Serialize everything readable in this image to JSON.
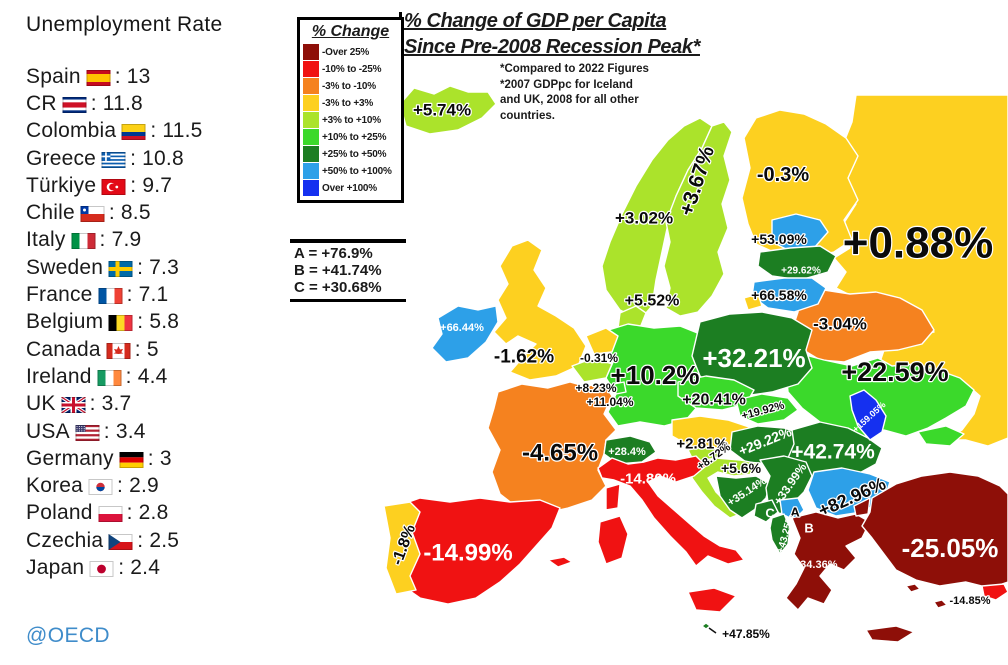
{
  "left_panel": {
    "title": "Unemployment Rate",
    "items": [
      {
        "country": "Spain",
        "flag": "spain",
        "value": "13"
      },
      {
        "country": "CR",
        "flag": "costa-rica",
        "value": "11.8"
      },
      {
        "country": "Colombia",
        "flag": "colombia",
        "value": "11.5"
      },
      {
        "country": "Greece",
        "flag": "greece",
        "value": "10.8"
      },
      {
        "country": "Türkiye",
        "flag": "turkiye",
        "value": "9.7"
      },
      {
        "country": "Chile",
        "flag": "chile",
        "value": "8.5"
      },
      {
        "country": "Italy",
        "flag": "italy",
        "value": "7.9"
      },
      {
        "country": "Sweden",
        "flag": "sweden",
        "value": "7.3"
      },
      {
        "country": "France",
        "flag": "france",
        "value": "7.1"
      },
      {
        "country": "Belgium",
        "flag": "belgium",
        "value": "5.8"
      },
      {
        "country": "Canada",
        "flag": "canada",
        "value": "5"
      },
      {
        "country": "Ireland",
        "flag": "ireland",
        "value": "4.4"
      },
      {
        "country": "UK",
        "flag": "uk",
        "value": "3.7"
      },
      {
        "country": "USA",
        "flag": "usa",
        "value": "3.4"
      },
      {
        "country": "Germany",
        "flag": "germany",
        "value": "3"
      },
      {
        "country": "Korea",
        "flag": "south-korea",
        "value": "2.9"
      },
      {
        "country": "Poland",
        "flag": "poland",
        "value": "2.8"
      },
      {
        "country": "Czechia",
        "flag": "czechia",
        "value": "2.5"
      },
      {
        "country": "Japan",
        "flag": "japan",
        "value": "2.4"
      }
    ],
    "footer": "@OECD"
  },
  "legend": {
    "title": "% Change",
    "items": [
      {
        "label": "-Over 25%",
        "color": "#8e0f08"
      },
      {
        "label": "-10% to -25%",
        "color": "#f01212"
      },
      {
        "label": "-3% to -10%",
        "color": "#f5821f"
      },
      {
        "label": "-3% to +3%",
        "color": "#fdd020"
      },
      {
        "label": "+3% to +10%",
        "color": "#abe32b"
      },
      {
        "label": "+10% to +25%",
        "color": "#3bd92b"
      },
      {
        "label": "+25% to +50%",
        "color": "#1c7e22"
      },
      {
        "label": "+50% to +100%",
        "color": "#2da0e8"
      },
      {
        "label": "Over +100%",
        "color": "#1530f0"
      }
    ],
    "abc": [
      {
        "key": "A",
        "value": "+76.9%"
      },
      {
        "key": "B",
        "value": "+41.74%"
      },
      {
        "key": "C",
        "value": "+30.68%"
      }
    ]
  },
  "map": {
    "title_line1": "% Change of GDP per Capita",
    "title_line2": "Since Pre-2008 Recession Peak*",
    "note_lines": [
      "*Compared to 2022 Figures",
      "*2007 GDPpc for Iceland",
      "and UK, 2008 for all other",
      "countries."
    ],
    "countries": [
      {
        "id": "russia",
        "name": "Russia",
        "value": "+0.88%",
        "category": "-3% to +3%"
      },
      {
        "id": "finland",
        "name": "Finland",
        "value": "-0.3%",
        "category": "-3% to +3%"
      },
      {
        "id": "norway",
        "name": "Norway",
        "value": "+3.02%",
        "category": "+3% to +10%"
      },
      {
        "id": "sweden",
        "name": "Sweden",
        "value": "+3.67%",
        "category": "+3% to +10%"
      },
      {
        "id": "iceland",
        "name": "Iceland",
        "value": "+5.74%",
        "category": "+3% to +10%"
      },
      {
        "id": "belarus",
        "name": "Belarus",
        "value": "-3.04%",
        "category": "-3% to -10%"
      },
      {
        "id": "ukraine",
        "name": "Ukraine",
        "value": "+22.59%",
        "category": "+10% to +25%"
      },
      {
        "id": "estonia",
        "name": "Estonia",
        "value": "+53.09%",
        "category": "+50% to +100%"
      },
      {
        "id": "latvia",
        "name": "Latvia",
        "value": "+29.62%",
        "category": "+25% to +50%"
      },
      {
        "id": "lithuania",
        "name": "Lithuania",
        "value": "+66.58%",
        "category": "+50% to +100%"
      },
      {
        "id": "kaliningrad",
        "name": "Kaliningrad (Russia)",
        "value": "",
        "category": "-3% to +3%"
      },
      {
        "id": "denmark",
        "name": "Denmark",
        "value": "+5.52%",
        "category": "+3% to +10%"
      },
      {
        "id": "ireland",
        "name": "Ireland",
        "value": "+66.44%",
        "category": "+50% to +100%"
      },
      {
        "id": "uk",
        "name": "United Kingdom",
        "value": "-1.62%",
        "category": "-3% to +3%"
      },
      {
        "id": "france",
        "name": "France",
        "value": "-4.65%",
        "category": "-3% to -10%"
      },
      {
        "id": "germany",
        "name": "Germany",
        "value": "+10.2%",
        "category": "+10% to +25%"
      },
      {
        "id": "netherlands",
        "name": "Netherlands",
        "value": "-0.31%",
        "category": "-3% to +3%"
      },
      {
        "id": "belgium",
        "name": "Belgium",
        "value": "+8.23%",
        "category": "+3% to +10%"
      },
      {
        "id": "luxembourg",
        "name": "Luxembourg",
        "value": "+11.04%",
        "category": "+10% to +25%"
      },
      {
        "id": "poland",
        "name": "Poland",
        "value": "+32.21%",
        "category": "+25% to +50%"
      },
      {
        "id": "czechia",
        "name": "Czechia",
        "value": "+20.41%",
        "category": "+10% to +25%"
      },
      {
        "id": "slovakia",
        "name": "Slovakia",
        "value": "+19.92%",
        "category": "+10% to +25%"
      },
      {
        "id": "austria",
        "name": "Austria",
        "value": "+2.81%",
        "category": "-3% to +3%"
      },
      {
        "id": "switzerland",
        "name": "Switzerland",
        "value": "+28.4%",
        "category": "+25% to +50%"
      },
      {
        "id": "hungary",
        "name": "Hungary",
        "value": "+29.22%",
        "category": "+25% to +50%"
      },
      {
        "id": "romania",
        "name": "Romania",
        "value": "+42.74%",
        "category": "+25% to +50%"
      },
      {
        "id": "bulgaria",
        "name": "Bulgaria",
        "value": "+82.96%",
        "category": "+50% to +100%"
      },
      {
        "id": "moldova",
        "name": "Moldova",
        "value": "+159.05%",
        "category": "Over +100%"
      },
      {
        "id": "slovenia",
        "name": "Slovenia",
        "value": "+8.72%",
        "category": "+3% to +10%"
      },
      {
        "id": "croatia",
        "name": "Croatia",
        "value": "+5.6%",
        "category": "+3% to +10%"
      },
      {
        "id": "bosnia",
        "name": "Bosnia and Herzegovina",
        "value": "+35.14%",
        "category": "+25% to +50%"
      },
      {
        "id": "serbia",
        "name": "Serbia",
        "value": "+33.99%",
        "category": "+25% to +50%"
      },
      {
        "id": "montenegro",
        "name": "Montenegro",
        "value": "C",
        "category": "+25% to +50%"
      },
      {
        "id": "kosovo",
        "name": "Kosovo",
        "value": "A",
        "category": "+50% to +100%"
      },
      {
        "id": "north_macedonia",
        "name": "North Macedonia",
        "value": "B",
        "category": "+25% to +50%"
      },
      {
        "id": "albania",
        "name": "Albania",
        "value": "+43.25%",
        "category": "+25% to +50%"
      },
      {
        "id": "greece",
        "name": "Greece",
        "value": "-34.36%",
        "category": "-Over 25%"
      },
      {
        "id": "turkiye",
        "name": "Türkiye",
        "value": "-25.05%",
        "category": "-Over 25%"
      },
      {
        "id": "cyprus",
        "name": "Cyprus",
        "value": "-14.85%",
        "category": "-10% to -25%"
      },
      {
        "id": "italy",
        "name": "Italy",
        "value": "-14.80%",
        "category": "-10% to -25%"
      },
      {
        "id": "spain",
        "name": "Spain",
        "value": "-14.99%",
        "category": "-10% to -25%"
      },
      {
        "id": "portugal",
        "name": "Portugal",
        "value": "-1.8%",
        "category": "-3% to +3%"
      },
      {
        "id": "malta",
        "name": "Malta",
        "value": "+47.85%",
        "category": "+25% to +50%"
      }
    ]
  }
}
